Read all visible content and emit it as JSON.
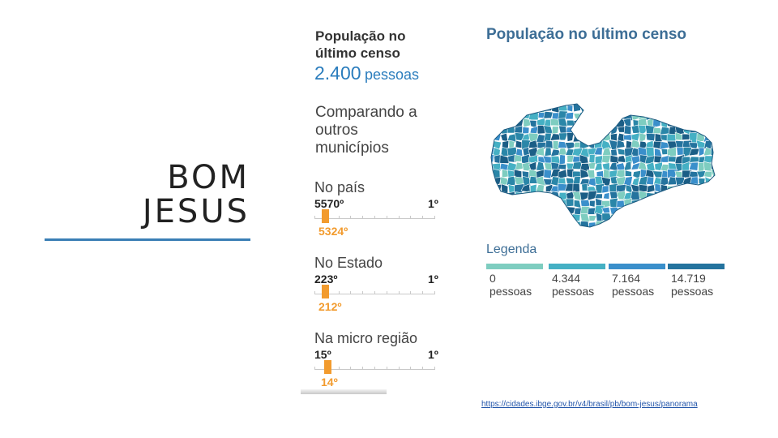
{
  "slide": {
    "title_line1": "BOM",
    "title_line2": "JESUS"
  },
  "summary": {
    "heading_line1": "População no",
    "heading_line2": "último censo",
    "value": "2.400",
    "unit": "pessoas",
    "compare_line1": "Comparando a",
    "compare_line2": "outros",
    "compare_line3": "municípios"
  },
  "rankings": [
    {
      "label": "No país",
      "low": "5570º",
      "high": "1º",
      "position": "5324º",
      "fraction": 0.044
    },
    {
      "label": "No Estado",
      "low": "223º",
      "high": "1º",
      "position": "212º",
      "fraction": 0.05
    },
    {
      "label": "Na micro região",
      "low": "15º",
      "high": "1º",
      "position": "14º",
      "fraction": 0.07
    }
  ],
  "map": {
    "title": "População no último censo",
    "legend_title": "Legenda",
    "legend": [
      {
        "line1": "0",
        "line2": "pessoas",
        "color": "#7ecdc0"
      },
      {
        "line1": "4.344",
        "line2": "pessoas",
        "color": "#45b0c4"
      },
      {
        "line1": "7.164",
        "line2": "pessoas",
        "color": "#3a8fcb"
      },
      {
        "line1": "14.719",
        "line2": "pessoas",
        "color": "#24739e"
      }
    ]
  },
  "source_link": "https://cidades.ibge.gov.br/v4/brasil/pb/bom-jesus/panorama"
}
